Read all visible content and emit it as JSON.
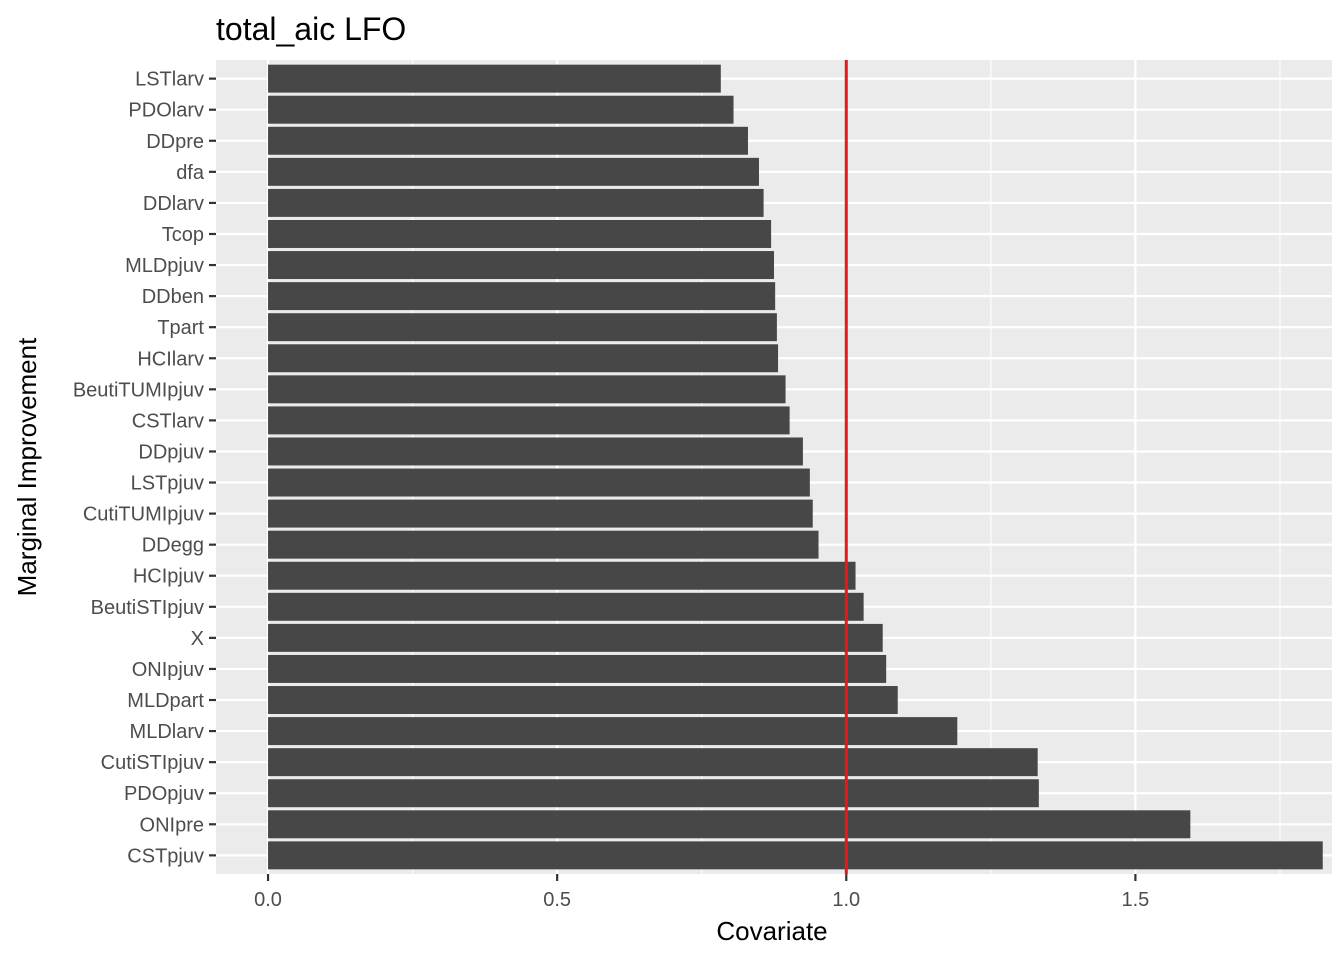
{
  "chart_data": {
    "type": "bar",
    "orientation": "horizontal",
    "title": "total_aic LFO",
    "xlabel": "Covariate",
    "ylabel": "Marginal Improvement",
    "xlim": [
      -0.09,
      1.84
    ],
    "x_ticks": [
      0.0,
      0.5,
      1.0,
      1.5
    ],
    "x_tick_labels": [
      "0.0",
      "0.5",
      "1.0",
      "1.5"
    ],
    "grid": true,
    "legend": "none",
    "reference_line": {
      "x": 1.0,
      "color": "#e31a1c"
    },
    "bar_color": "#474747",
    "categories": [
      "LSTlarv",
      "PDOlarv",
      "DDpre",
      "dfa",
      "DDlarv",
      "Tcop",
      "MLDpjuv",
      "DDben",
      "Tpart",
      "HCIlarv",
      "BeutiTUMIpjuv",
      "CSTlarv",
      "DDpjuv",
      "LSTpjuv",
      "CutiTUMIpjuv",
      "DDegg",
      "HCIpjuv",
      "BeutiSTIpjuv",
      "X",
      "ONIpjuv",
      "MLDpart",
      "MLDlarv",
      "CutiSTIpjuv",
      "PDOpjuv",
      "ONIpre",
      "CSTpjuv"
    ],
    "values": [
      0.783,
      0.805,
      0.83,
      0.849,
      0.857,
      0.87,
      0.875,
      0.877,
      0.88,
      0.882,
      0.895,
      0.902,
      0.925,
      0.937,
      0.942,
      0.952,
      1.016,
      1.03,
      1.063,
      1.069,
      1.089,
      1.192,
      1.331,
      1.333,
      1.595,
      1.824
    ]
  }
}
